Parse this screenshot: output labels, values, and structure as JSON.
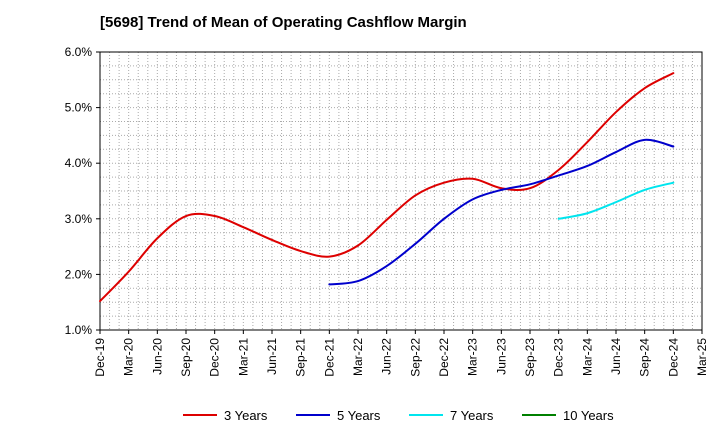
{
  "chart_data": {
    "type": "line",
    "title": "[5698]  Trend of Mean of Operating Cashflow Margin",
    "xlabel": "",
    "ylabel": "",
    "x": [
      "Dec-19",
      "Mar-20",
      "Jun-20",
      "Sep-20",
      "Dec-20",
      "Mar-21",
      "Jun-21",
      "Sep-21",
      "Dec-21",
      "Mar-22",
      "Jun-22",
      "Sep-22",
      "Dec-22",
      "Mar-23",
      "Jun-23",
      "Sep-23",
      "Dec-23",
      "Mar-24",
      "Jun-24",
      "Sep-24",
      "Dec-24",
      "Mar-25"
    ],
    "ylim": [
      1.0,
      6.0
    ],
    "yticks": [
      "1.0%",
      "2.0%",
      "3.0%",
      "4.0%",
      "5.0%",
      "6.0%"
    ],
    "grid": true,
    "legend_position": "bottom",
    "series": [
      {
        "name": "3 Years",
        "color": "#dd0000",
        "values": [
          1.52,
          2.05,
          2.65,
          3.05,
          3.05,
          2.85,
          2.62,
          2.42,
          2.32,
          2.52,
          2.98,
          3.42,
          3.65,
          3.72,
          3.55,
          3.55,
          3.88,
          4.38,
          4.92,
          5.35,
          5.62,
          null
        ]
      },
      {
        "name": "5 Years",
        "color": "#0000cc",
        "values": [
          null,
          null,
          null,
          null,
          null,
          null,
          null,
          null,
          1.82,
          1.88,
          2.15,
          2.55,
          3.0,
          3.35,
          3.52,
          3.62,
          3.78,
          3.95,
          4.2,
          4.42,
          4.3,
          null
        ]
      },
      {
        "name": "7 Years",
        "color": "#00e5ee",
        "values": [
          null,
          null,
          null,
          null,
          null,
          null,
          null,
          null,
          null,
          null,
          null,
          null,
          null,
          null,
          null,
          null,
          3.0,
          3.1,
          3.3,
          3.52,
          3.65,
          null
        ]
      },
      {
        "name": "10 Years",
        "color": "#008000",
        "values": [
          null,
          null,
          null,
          null,
          null,
          null,
          null,
          null,
          null,
          null,
          null,
          null,
          null,
          null,
          null,
          null,
          null,
          null,
          null,
          null,
          null,
          null
        ]
      }
    ]
  }
}
